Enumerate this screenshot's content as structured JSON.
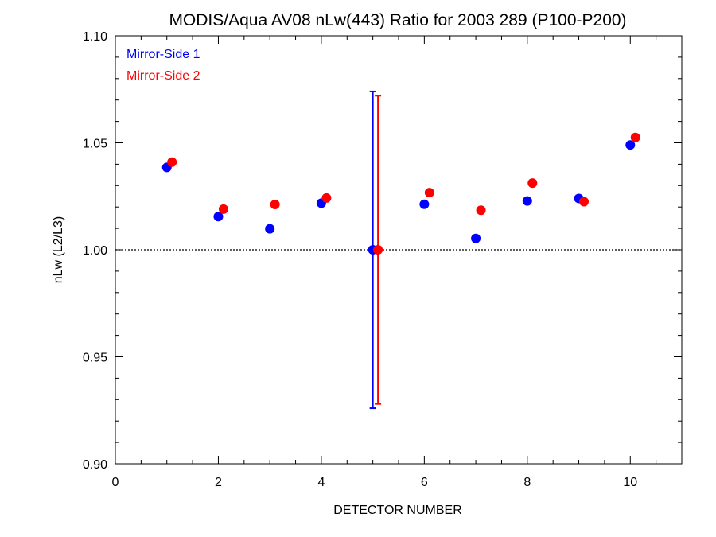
{
  "chart_data": {
    "type": "scatter",
    "title": "MODIS/Aqua AV08 nLw(443) Ratio for 2003 289 (P100-P200)",
    "xlabel": "DETECTOR NUMBER",
    "ylabel": "nLw (L2/L3)",
    "xlim": [
      0,
      11
    ],
    "ylim": [
      0.9,
      1.1
    ],
    "xticks": [
      0,
      2,
      4,
      6,
      8,
      10
    ],
    "xtick_labels": [
      "0",
      "2",
      "4",
      "6",
      "8",
      "10"
    ],
    "yticks": [
      0.9,
      0.95,
      1.0,
      1.05,
      1.1
    ],
    "ytick_labels": [
      "0.90",
      "0.95",
      "1.00",
      "1.05",
      "1.10"
    ],
    "reference_line": 1.0,
    "legend_position": "top-left",
    "series": [
      {
        "name": "Mirror-Side 1",
        "color": "#0000ff",
        "x": [
          1,
          2,
          3,
          4,
          5,
          6,
          7,
          8,
          9,
          10
        ],
        "y": [
          1.0385,
          1.0155,
          1.0098,
          1.0218,
          1.0,
          1.0213,
          1.0053,
          1.0228,
          1.024,
          1.049
        ],
        "error_bar": {
          "x": 5,
          "low": 0.926,
          "high": 1.074
        }
      },
      {
        "name": "Mirror-Side 2",
        "color": "#ff0000",
        "x": [
          1.1,
          2.1,
          3.1,
          4.1,
          5.1,
          6.1,
          7.1,
          8.1,
          9.1,
          10.1
        ],
        "y": [
          1.041,
          1.019,
          1.0212,
          1.0242,
          1.0,
          1.0267,
          1.0185,
          1.0312,
          1.0225,
          1.0525
        ],
        "error_bar": {
          "x": 5.1,
          "low": 0.928,
          "high": 1.072
        }
      }
    ]
  }
}
